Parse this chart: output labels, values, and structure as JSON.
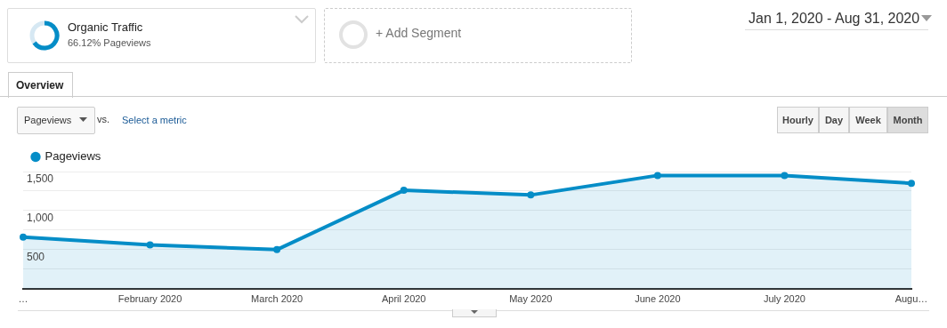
{
  "chart_data": {
    "type": "area",
    "categories": [
      "…",
      "February 2020",
      "March 2020",
      "April 2020",
      "May 2020",
      "June 2020",
      "July 2020",
      "Augu…"
    ],
    "series": [
      {
        "name": "Pageviews",
        "color": "#058dc7",
        "values": [
          660,
          560,
          500,
          1260,
          1200,
          1450,
          1450,
          1350
        ]
      }
    ],
    "ylim": [
      0,
      1500
    ],
    "yticks": [
      {
        "value": 0,
        "label": null
      },
      {
        "value": 250,
        "label": null
      },
      {
        "value": 500,
        "label": "500"
      },
      {
        "value": 750,
        "label": null
      },
      {
        "value": 1000,
        "label": "1,000"
      },
      {
        "value": 1250,
        "label": null
      },
      {
        "value": 1500,
        "label": "1,500"
      }
    ],
    "grid": "y",
    "legend": "top left",
    "marker": "circle",
    "line_style": "solid",
    "annotations": [
      "Organic Traffic",
      "66.12% Pageviews",
      "+ Add Segment",
      "Jan 1, 2020 - Aug 31, 2020",
      "Overview",
      "Pageviews",
      "vs.",
      "Select a metric",
      "Hourly",
      "Day",
      "Week",
      "Month"
    ]
  }
}
